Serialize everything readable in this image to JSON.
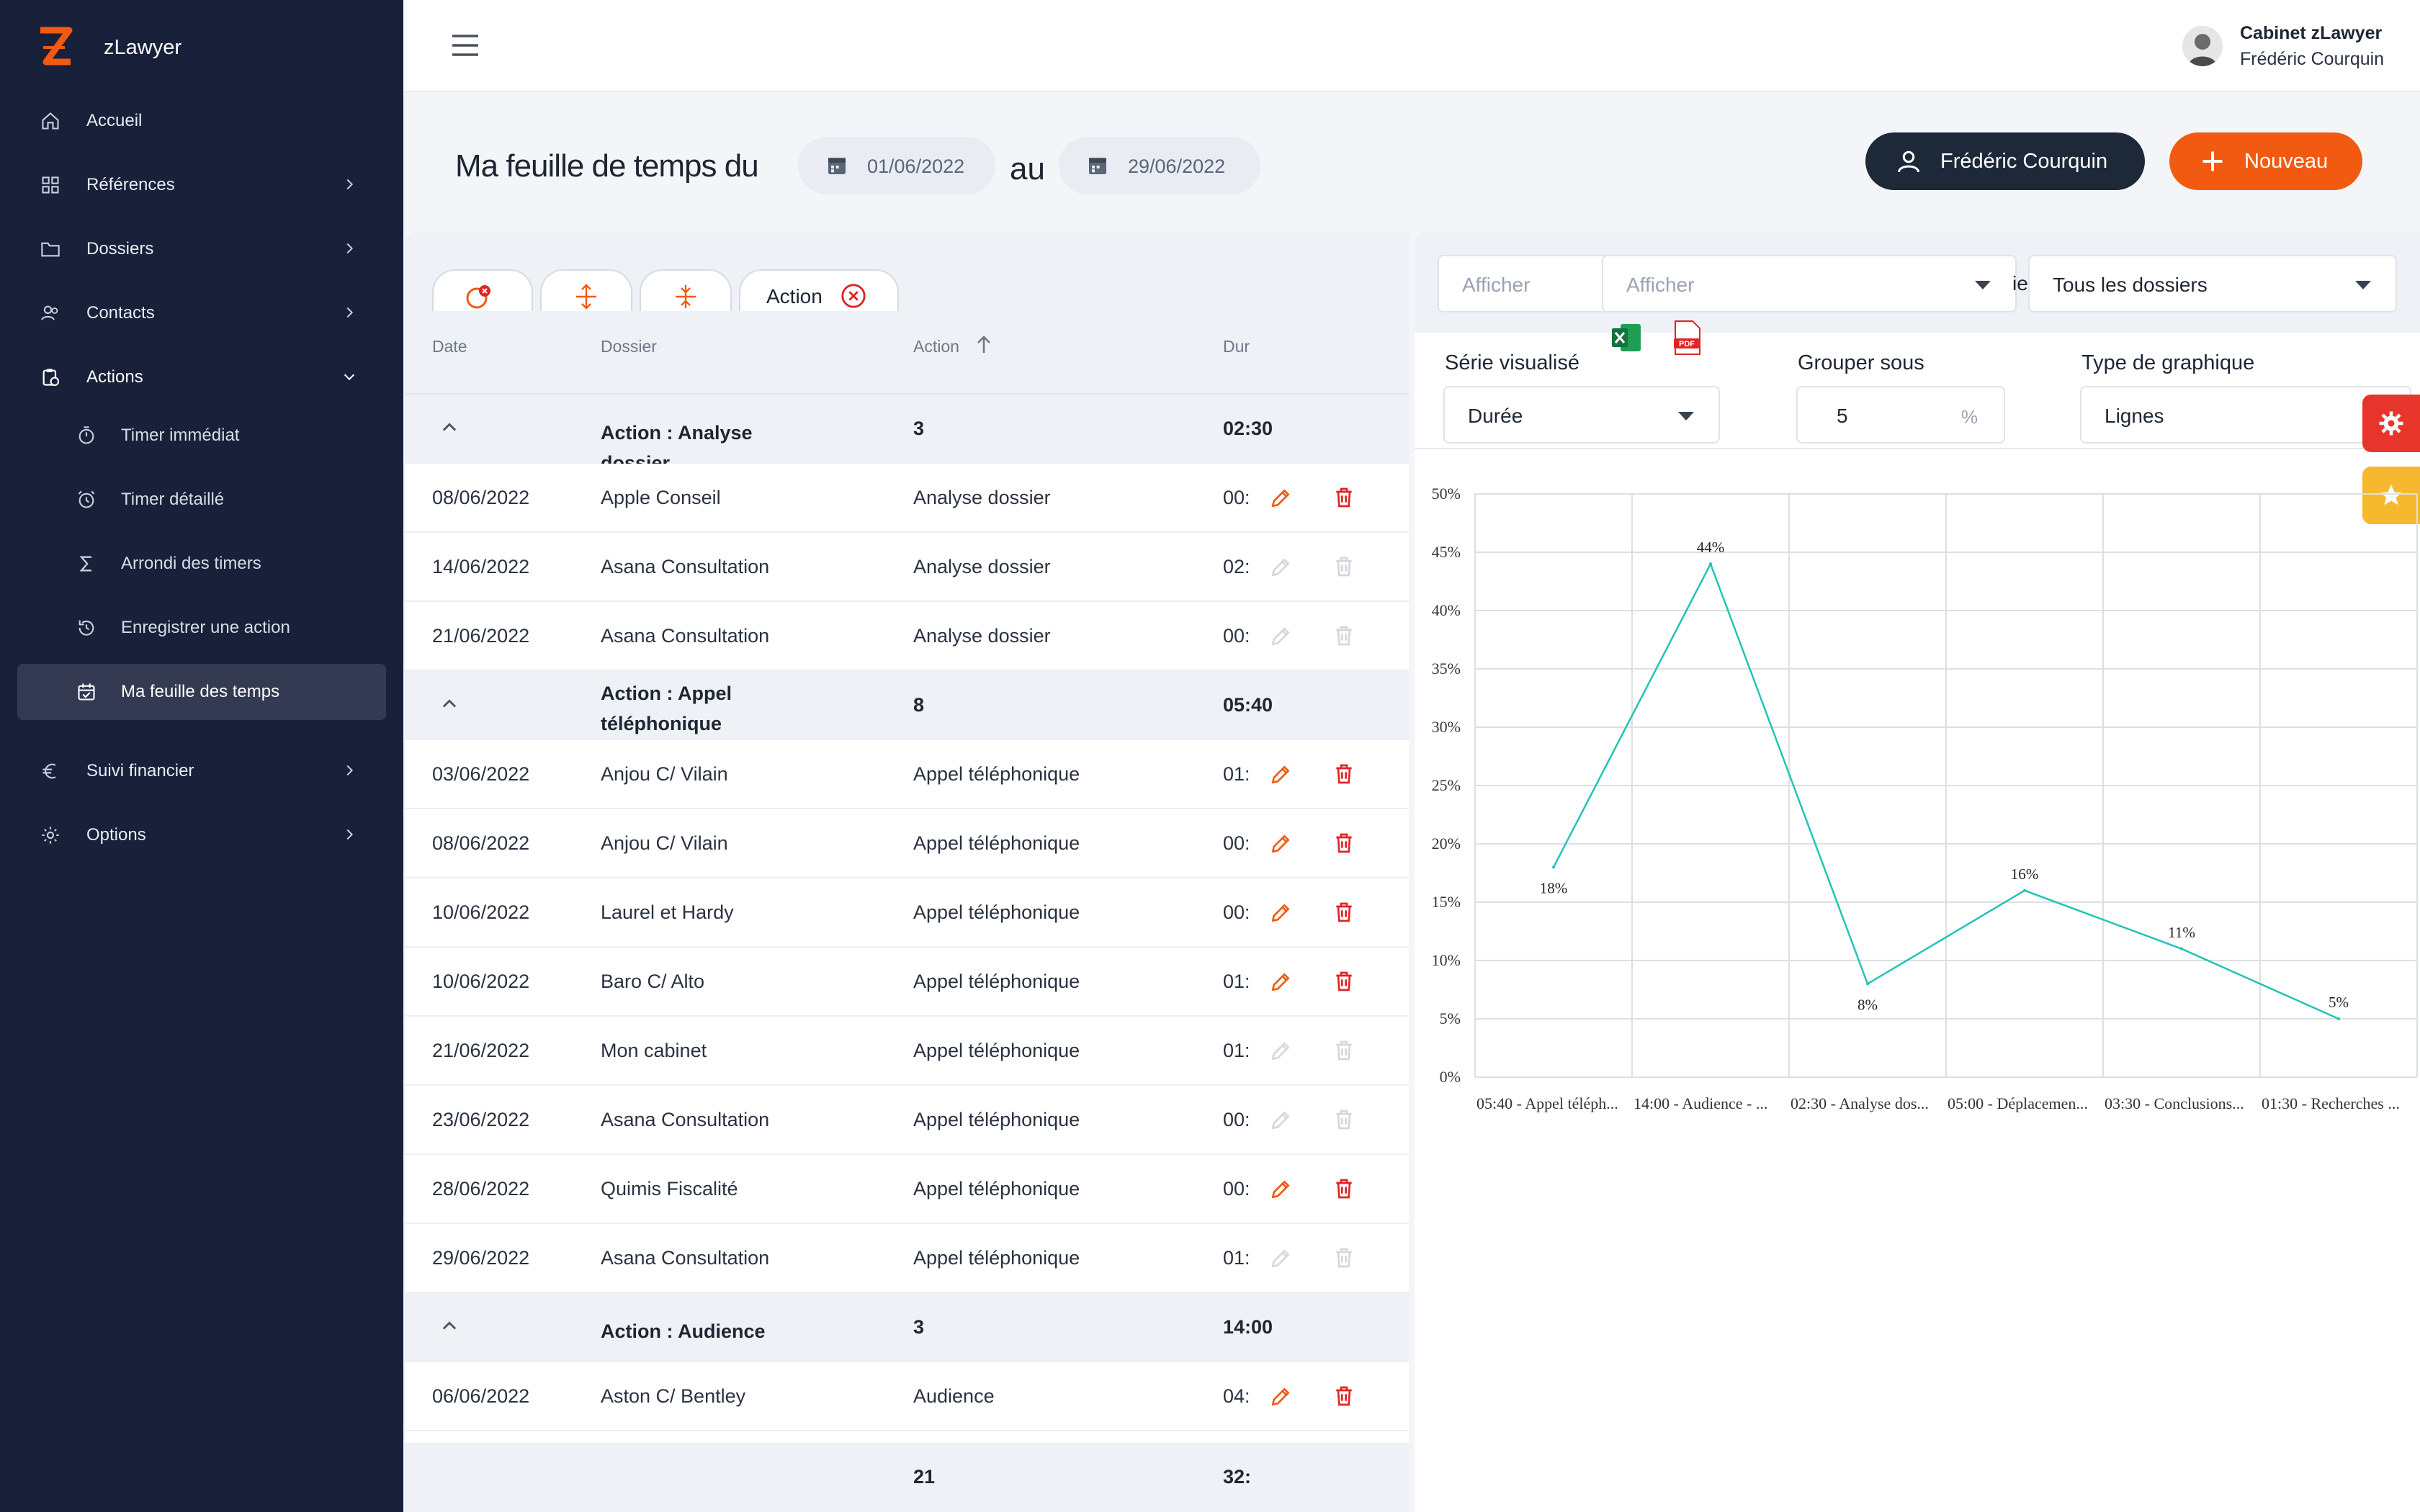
{
  "app": {
    "name": "zLawyer",
    "firm": "Cabinet zLawyer",
    "user": "Frédéric Courquin"
  },
  "nav": {
    "accueil": "Accueil",
    "references": "Références",
    "dossiers": "Dossiers",
    "contacts": "Contacts",
    "actions": "Actions",
    "sub": [
      "Timer immédiat",
      "Timer détaillé",
      "Arrondi des timers",
      "Enregistrer une action",
      "Ma feuille des temps"
    ],
    "suivi": "Suivi financier",
    "options": "Options"
  },
  "header": {
    "title": "Ma feuille de temps du",
    "date_from": "01/06/2022",
    "au": "au",
    "date_to": "29/06/2022",
    "user_button": "Frédéric Courquin",
    "new_button": "Nouveau"
  },
  "toolbar": {
    "action_chip": "Action"
  },
  "table": {
    "columns": {
      "date": "Date",
      "dossier": "Dossier",
      "action": "Action",
      "duration": "Dur"
    },
    "rows": [
      {
        "type": "group",
        "label": "Action : Analyse dossier",
        "count": "3",
        "duration": "02:30"
      },
      {
        "type": "item",
        "date": "08/06/2022",
        "dossier": "Apple Conseil",
        "action": "Analyse dossier",
        "duration": "00:",
        "editable": true
      },
      {
        "type": "item",
        "date": "14/06/2022",
        "dossier": "Asana Consultation",
        "action": "Analyse dossier",
        "duration": "02:",
        "editable": false
      },
      {
        "type": "item",
        "date": "21/06/2022",
        "dossier": "Asana Consultation",
        "action": "Analyse dossier",
        "duration": "00:",
        "editable": false
      },
      {
        "type": "group",
        "label": "Action : Appel téléphonique",
        "count": "8",
        "duration": "05:40"
      },
      {
        "type": "item",
        "date": "03/06/2022",
        "dossier": "Anjou C/ Vilain",
        "action": "Appel téléphonique",
        "duration": "01:",
        "editable": true
      },
      {
        "type": "item",
        "date": "08/06/2022",
        "dossier": "Anjou C/ Vilain",
        "action": "Appel téléphonique",
        "duration": "00:",
        "editable": true
      },
      {
        "type": "item",
        "date": "10/06/2022",
        "dossier": "Laurel et Hardy",
        "action": "Appel téléphonique",
        "duration": "00:",
        "editable": true
      },
      {
        "type": "item",
        "date": "10/06/2022",
        "dossier": "Baro C/ Alto",
        "action": "Appel téléphonique",
        "duration": "01:",
        "editable": true
      },
      {
        "type": "item",
        "date": "21/06/2022",
        "dossier": "Mon cabinet",
        "action": "Appel téléphonique",
        "duration": "01:",
        "editable": false
      },
      {
        "type": "item",
        "date": "23/06/2022",
        "dossier": "Asana Consultation",
        "action": "Appel téléphonique",
        "duration": "00:",
        "editable": false
      },
      {
        "type": "item",
        "date": "28/06/2022",
        "dossier": "Quimis Fiscalité",
        "action": "Appel téléphonique",
        "duration": "00:",
        "editable": true
      },
      {
        "type": "item",
        "date": "29/06/2022",
        "dossier": "Asana Consultation",
        "action": "Appel téléphonique",
        "duration": "01:",
        "editable": false
      },
      {
        "type": "group",
        "label": "Action : Audience",
        "count": "3",
        "duration": "14:00"
      },
      {
        "type": "item",
        "date": "06/06/2022",
        "dossier": "Aston C/ Bentley",
        "action": "Audience",
        "duration": "04:",
        "editable": true
      }
    ],
    "footer": {
      "count": "21",
      "duration": "32:"
    }
  },
  "chart_panel": {
    "afficher_1": "Afficher",
    "afficher_2": "Afficher",
    "partial_label": "ie",
    "dossiers_select": "Tous les dossiers",
    "serie_label": "Série visualisé",
    "serie_value": "Durée",
    "grouper_label": "Grouper sous",
    "grouper_value": "5",
    "grouper_unit": "%",
    "type_label": "Type de graphique",
    "type_value": "Lignes"
  },
  "colors": {
    "accent": "#f15a10",
    "sidebar": "#18203a",
    "line": "#22c3b5",
    "danger": "#e02424"
  },
  "chart_data": {
    "type": "line",
    "categories": [
      "05:40 - Appel téléph...",
      "14:00 - Audience - ...",
      "02:30 - Analyse dos...",
      "05:00 - Déplacemen...",
      "03:30 - Conclusions...",
      "01:30 - Recherches ..."
    ],
    "values": [
      18,
      44,
      8,
      16,
      11,
      5
    ],
    "data_labels": [
      "18%",
      "44%",
      "8%",
      "16%",
      "11%",
      "5%"
    ],
    "y_ticks": [
      "0%",
      "5%",
      "10%",
      "15%",
      "20%",
      "25%",
      "30%",
      "35%",
      "40%",
      "45%",
      "50%"
    ],
    "ylim": [
      0,
      50
    ],
    "grid": true
  }
}
